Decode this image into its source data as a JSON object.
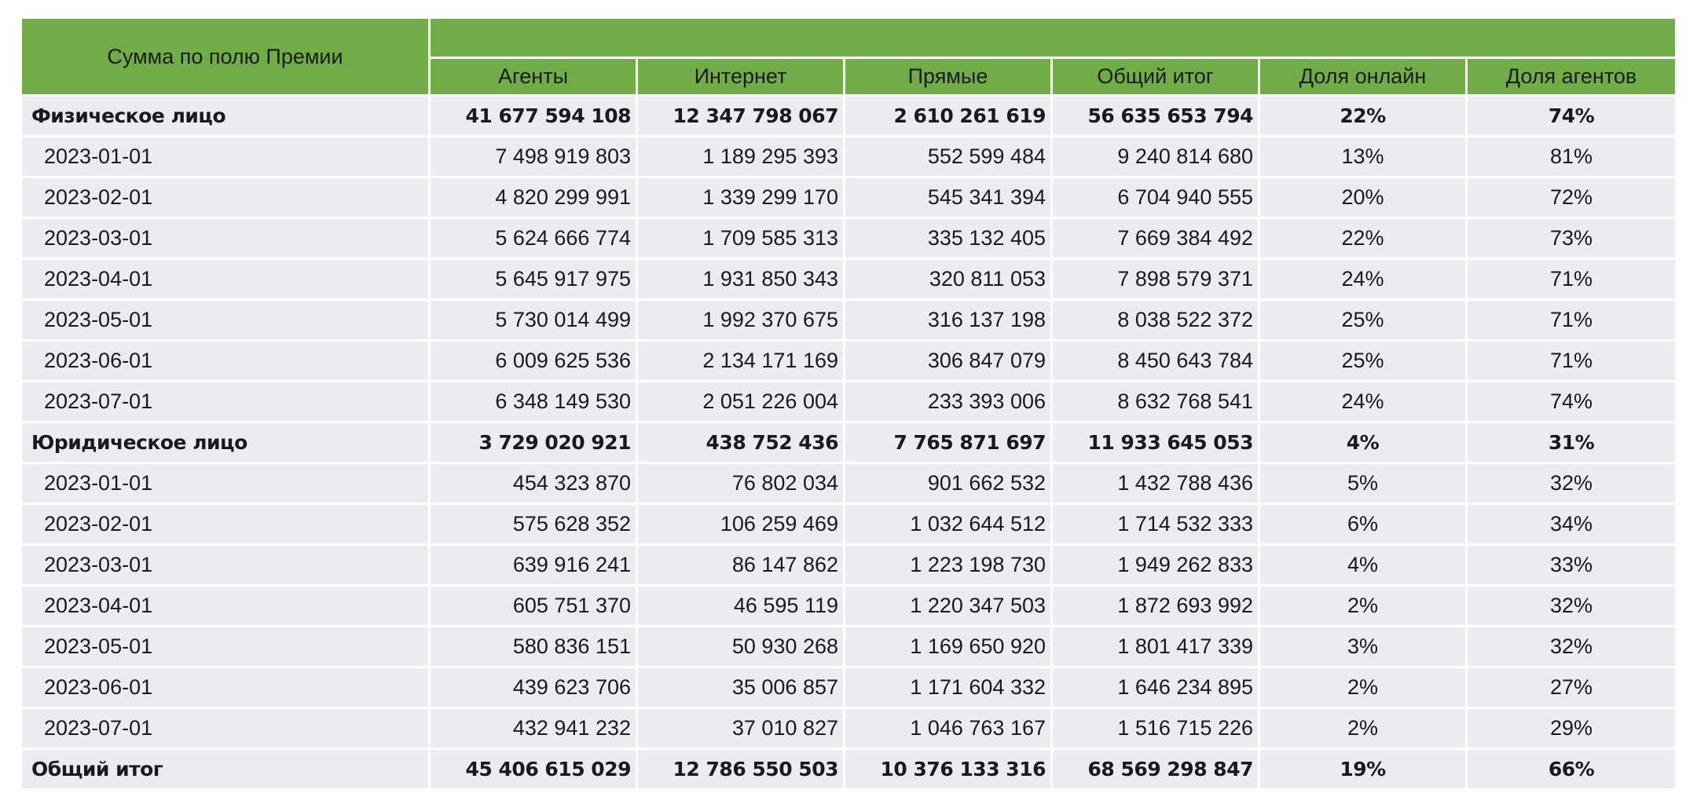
{
  "table": {
    "corner_label": "Сумма по полю Премии",
    "columns": [
      "Агенты",
      "Интернет",
      "Прямые",
      "Общий итог",
      "Доля онлайн",
      "Доля агентов"
    ],
    "rows": [
      {
        "type": "group",
        "label": "Физическое лицо",
        "cells": [
          "41 677 594 108",
          "12 347 798 067",
          "2 610 261 619",
          "56 635 653 794",
          "22%",
          "74%"
        ]
      },
      {
        "type": "child",
        "label": "2023-01-01",
        "cells": [
          "7 498 919 803",
          "1 189 295 393",
          "552 599 484",
          "9 240 814 680",
          "13%",
          "81%"
        ]
      },
      {
        "type": "child",
        "label": "2023-02-01",
        "cells": [
          "4 820 299 991",
          "1 339 299 170",
          "545 341 394",
          "6 704 940 555",
          "20%",
          "72%"
        ]
      },
      {
        "type": "child",
        "label": "2023-03-01",
        "cells": [
          "5 624 666 774",
          "1 709 585 313",
          "335 132 405",
          "7 669 384 492",
          "22%",
          "73%"
        ]
      },
      {
        "type": "child",
        "label": "2023-04-01",
        "cells": [
          "5 645 917 975",
          "1 931 850 343",
          "320 811 053",
          "7 898 579 371",
          "24%",
          "71%"
        ]
      },
      {
        "type": "child",
        "label": "2023-05-01",
        "cells": [
          "5 730 014 499",
          "1 992 370 675",
          "316 137 198",
          "8 038 522 372",
          "25%",
          "71%"
        ]
      },
      {
        "type": "child",
        "label": "2023-06-01",
        "cells": [
          "6 009 625 536",
          "2 134 171 169",
          "306 847 079",
          "8 450 643 784",
          "25%",
          "71%"
        ]
      },
      {
        "type": "child",
        "label": "2023-07-01",
        "cells": [
          "6 348 149 530",
          "2 051 226 004",
          "233 393 006",
          "8 632 768 541",
          "24%",
          "74%"
        ]
      },
      {
        "type": "group",
        "label": "Юридическое лицо",
        "cells": [
          "3 729 020 921",
          "438 752 436",
          "7 765 871 697",
          "11 933 645 053",
          "4%",
          "31%"
        ]
      },
      {
        "type": "child",
        "label": "2023-01-01",
        "cells": [
          "454 323 870",
          "76 802 034",
          "901 662 532",
          "1 432 788 436",
          "5%",
          "32%"
        ]
      },
      {
        "type": "child",
        "label": "2023-02-01",
        "cells": [
          "575 628 352",
          "106 259 469",
          "1 032 644 512",
          "1 714 532 333",
          "6%",
          "34%"
        ]
      },
      {
        "type": "child",
        "label": "2023-03-01",
        "cells": [
          "639 916 241",
          "86 147 862",
          "1 223 198 730",
          "1 949 262 833",
          "4%",
          "33%"
        ]
      },
      {
        "type": "child",
        "label": "2023-04-01",
        "cells": [
          "605 751 370",
          "46 595 119",
          "1 220 347 503",
          "1 872 693 992",
          "2%",
          "32%"
        ]
      },
      {
        "type": "child",
        "label": "2023-05-01",
        "cells": [
          "580 836 151",
          "50 930 268",
          "1 169 650 920",
          "1 801 417 339",
          "3%",
          "32%"
        ]
      },
      {
        "type": "child",
        "label": "2023-06-01",
        "cells": [
          "439 623 706",
          "35 006 857",
          "1 171 604 332",
          "1 646 234 895",
          "2%",
          "27%"
        ]
      },
      {
        "type": "child",
        "label": "2023-07-01",
        "cells": [
          "432 941 232",
          "37 010 827",
          "1 046 763 167",
          "1 516 715 226",
          "2%",
          "29%"
        ]
      },
      {
        "type": "total",
        "label": "Общий итог",
        "cells": [
          "45 406 615 029",
          "12 786 550 503",
          "10 376 133 316",
          "68 569 298 847",
          "19%",
          "66%"
        ]
      }
    ]
  },
  "colors": {
    "header_bg": "#70ad47",
    "row_bg": "#ebebf1",
    "separator": "#ffffff"
  }
}
